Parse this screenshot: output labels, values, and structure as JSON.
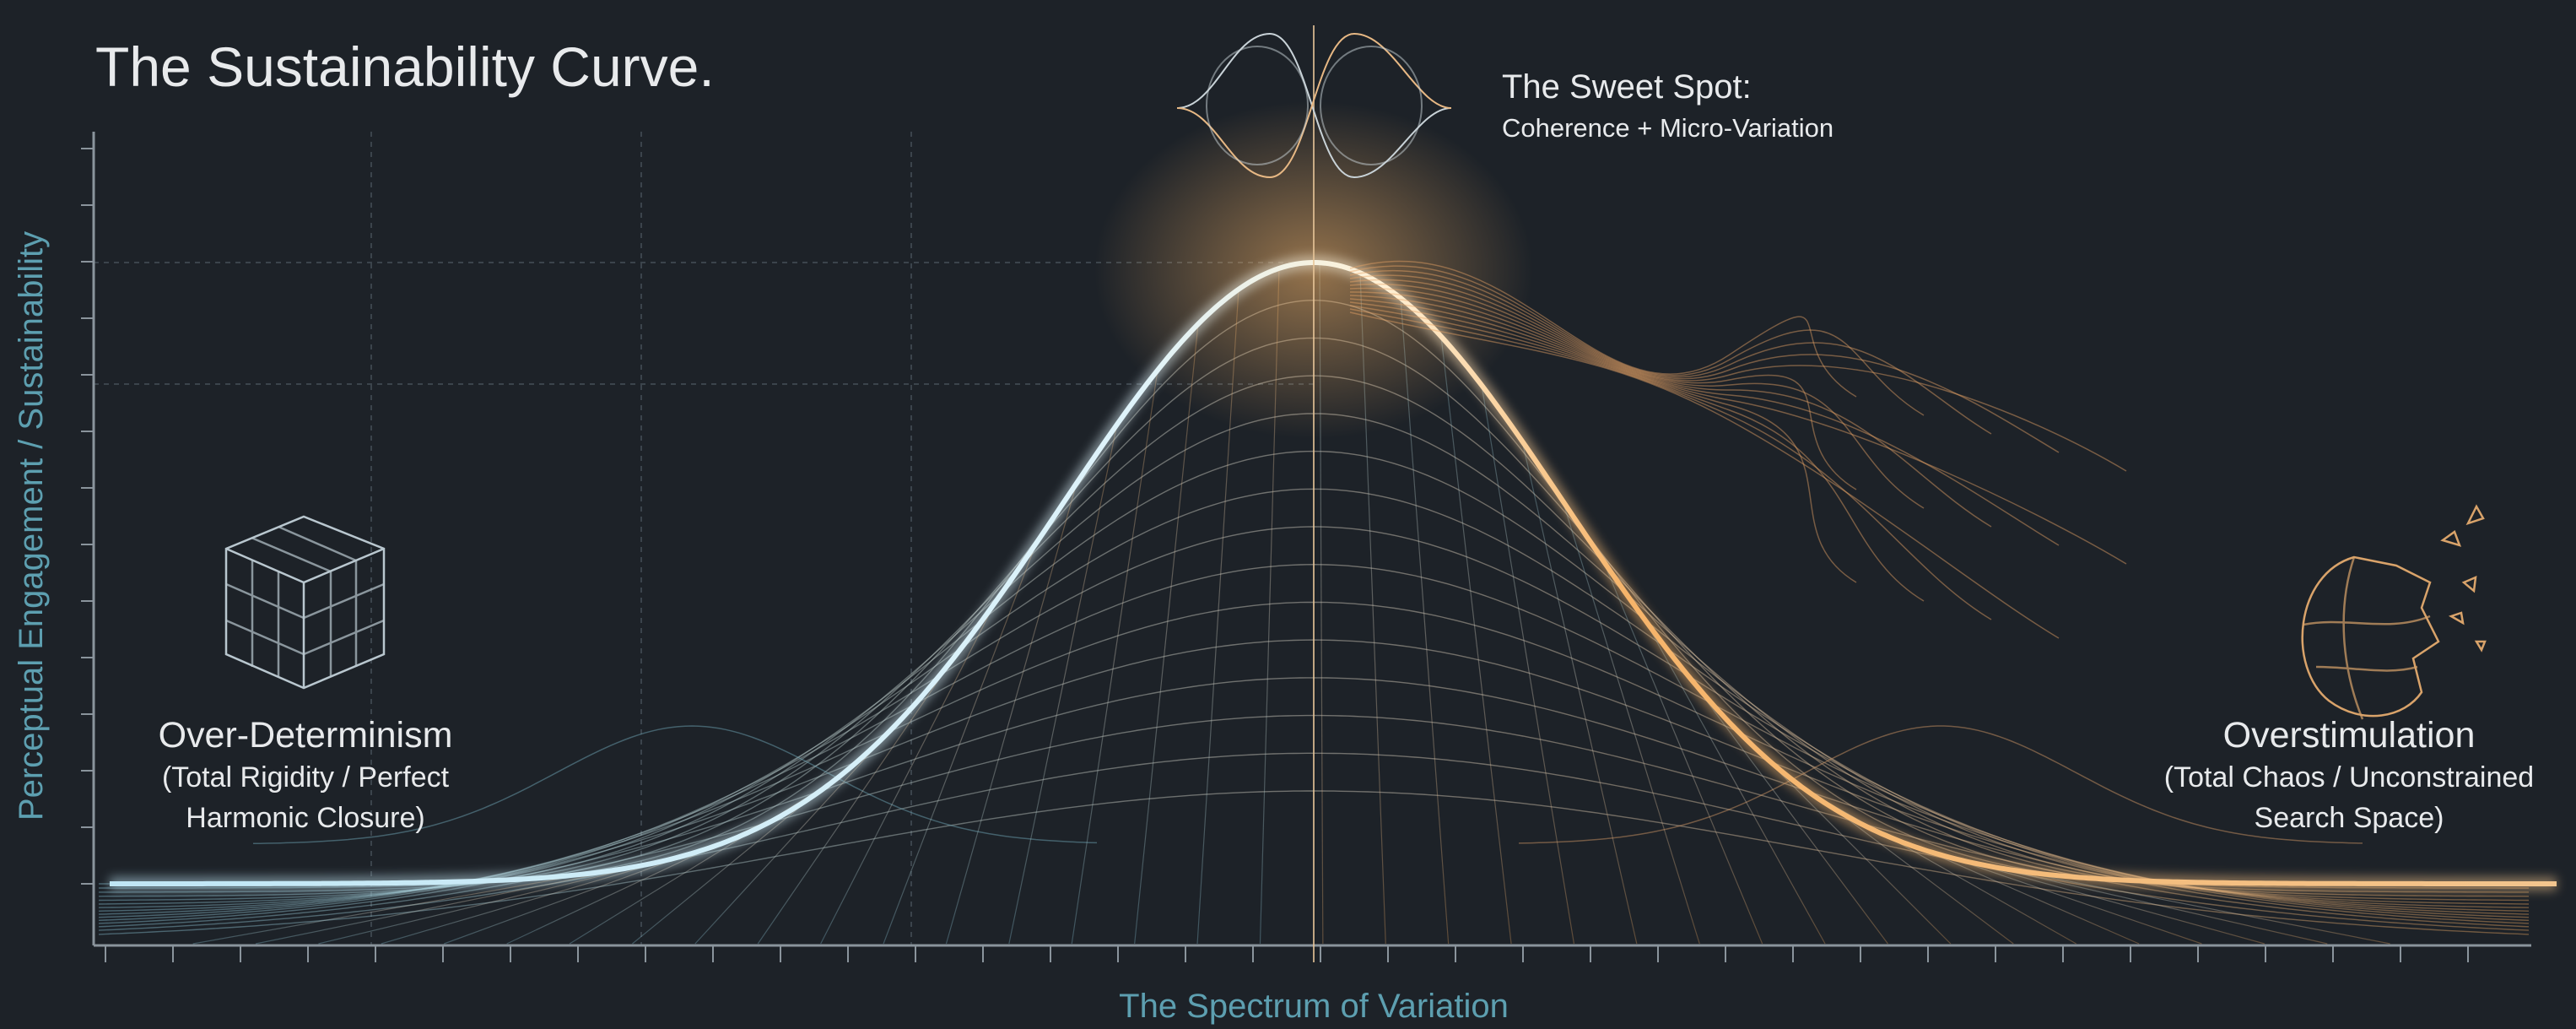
{
  "header": {
    "title": "The Sustainability Curve."
  },
  "axes": {
    "y_label": "Perceptual Engagement / Sustainability",
    "x_label": "The Spectrum of Variation"
  },
  "sweet_spot": {
    "title": "The Sweet Spot:",
    "subtitle": "Coherence + Micro-Variation"
  },
  "left_region": {
    "title": "Over-Determinism",
    "lines": [
      "(Total Rigidity / Perfect",
      "Harmonic Closure)"
    ]
  },
  "right_region": {
    "title": "Overstimulation",
    "lines": [
      "(Total Chaos / Unconstrained",
      "Search Space)"
    ]
  }
}
